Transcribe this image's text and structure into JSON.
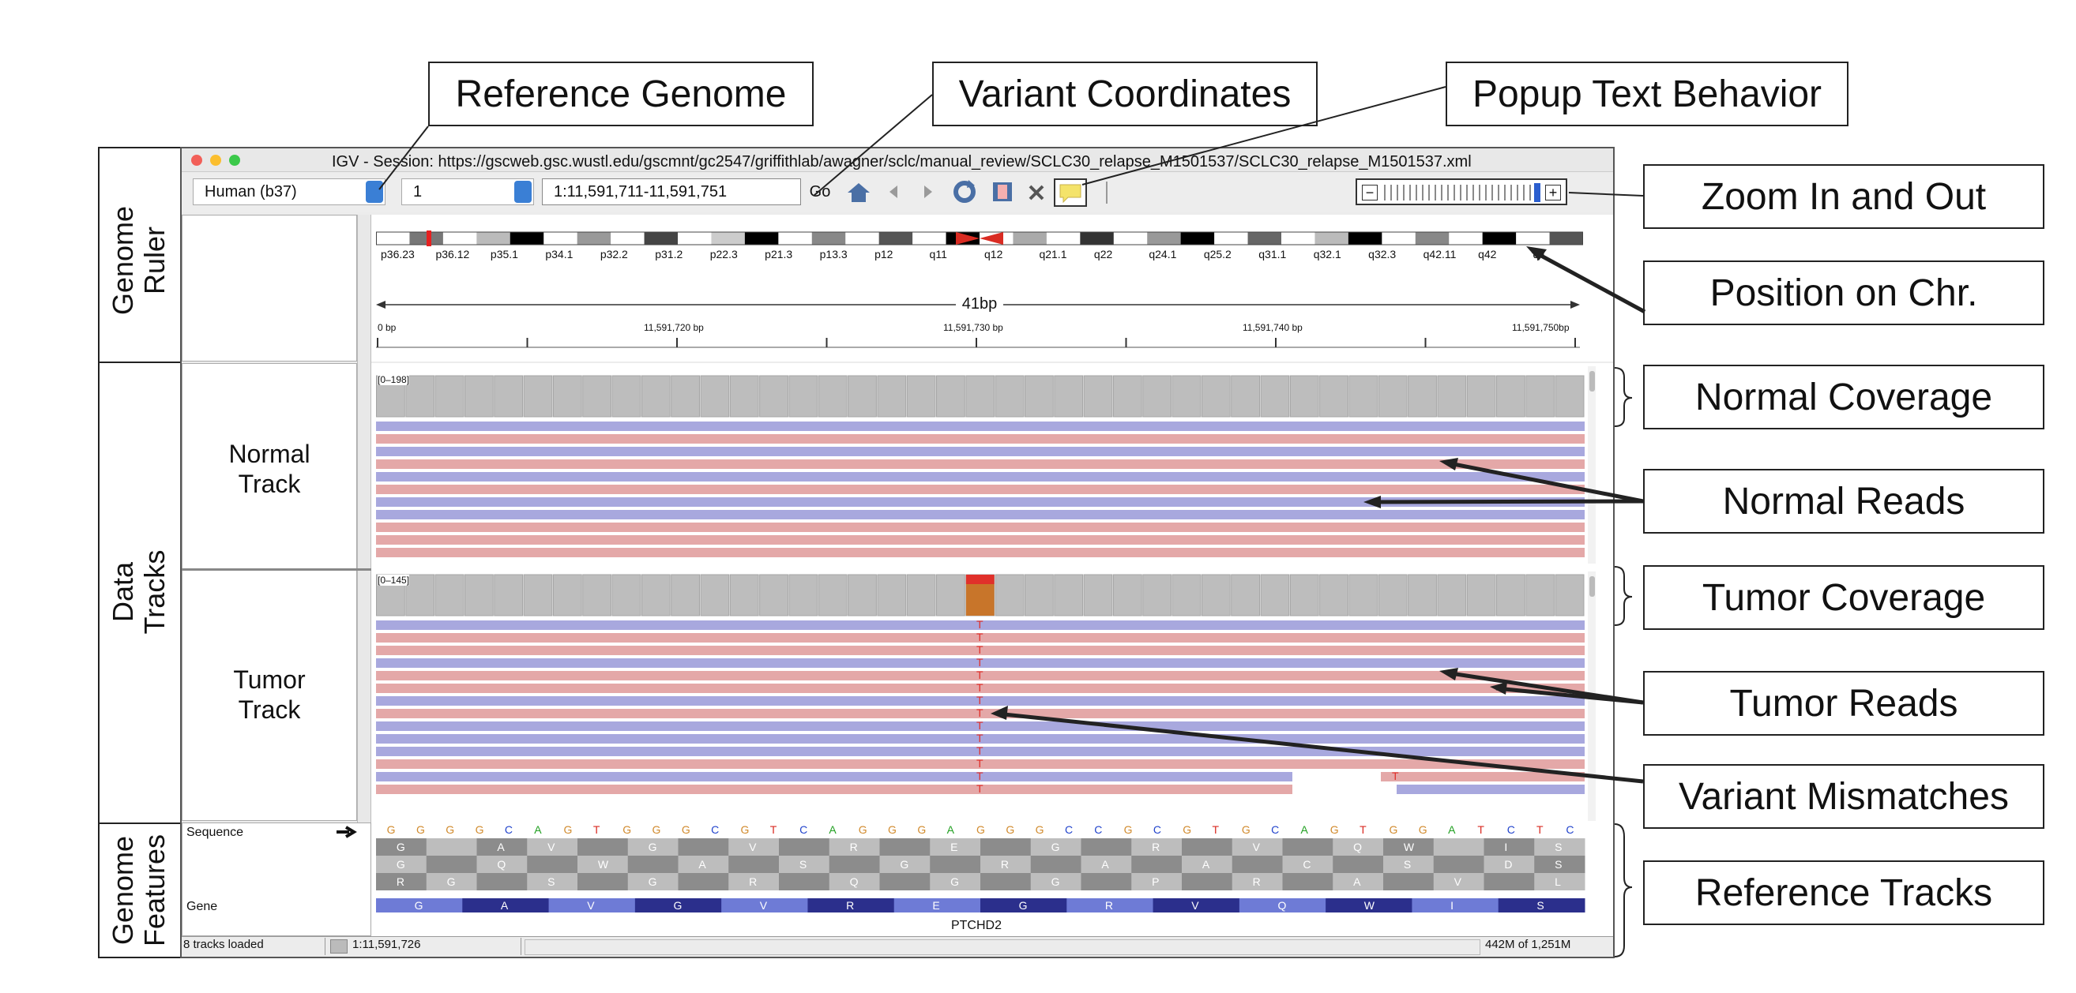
{
  "callouts": {
    "reference_genome": "Reference Genome",
    "variant_coordinates": "Variant Coordinates",
    "popup_text": "Popup Text Behavior",
    "zoom": "Zoom In and Out",
    "position_chr": "Position on Chr.",
    "normal_coverage": "Normal Coverage",
    "normal_reads": "Normal Reads",
    "tumor_coverage": "Tumor Coverage",
    "tumor_reads": "Tumor Reads",
    "variant_mismatches": "Variant Mismatches",
    "reference_tracks": "Reference Tracks"
  },
  "side_labels": {
    "genome_ruler": [
      "Genome",
      "Ruler"
    ],
    "data_tracks": [
      "Data",
      "Tracks"
    ],
    "genome_features": [
      "Genome",
      "Features"
    ]
  },
  "window": {
    "title": "IGV - Session: https://gscweb.gsc.wustl.edu/gscmnt/gc2547/griffithlab/awagner/sclc/manual_review/SCLC30_relapse_M1501537/SCLC30_relapse_M1501537.xml",
    "genome_select": "Human (b37)",
    "chrom_select": "1",
    "locus": "1:11,591,711-11,591,751",
    "go_label": "Go"
  },
  "ideogram_bands": [
    "p36.23",
    "p36.12",
    "p35.1",
    "p34.1",
    "p32.2",
    "p31.2",
    "p22.3",
    "p21.3",
    "p13.3",
    "p12",
    "q11",
    "q12",
    "q21.1",
    "q22",
    "q24.1",
    "q25.2",
    "q31.1",
    "q32.1",
    "q32.3",
    "q42.11",
    "q42",
    "q4"
  ],
  "ruler": {
    "span": "41bp",
    "tick_labels": [
      "0 bp",
      "11,591,720 bp",
      "11,591,730 bp",
      "11,591,740 bp",
      "11,591,750bp"
    ]
  },
  "tracks": {
    "normal": {
      "name_line1": "Normal",
      "name_line2": "Track",
      "range": "[0–198]"
    },
    "tumor": {
      "name_line1": "Tumor",
      "name_line2": "Track",
      "range": "[0–145]",
      "mismatch_base": "T",
      "extra_base": "T"
    }
  },
  "sequence": {
    "label": "Sequence",
    "bases": [
      "G",
      "G",
      "G",
      "G",
      "C",
      "A",
      "G",
      "T",
      "G",
      "G",
      "G",
      "C",
      "G",
      "T",
      "C",
      "A",
      "G",
      "G",
      "G",
      "A",
      "G",
      "G",
      "G",
      "C",
      "C",
      "G",
      "C",
      "G",
      "T",
      "G",
      "C",
      "A",
      "G",
      "T",
      "G",
      "G",
      "A",
      "T",
      "C",
      "T",
      "C"
    ],
    "aa_row1": [
      "G",
      "",
      "A",
      "V",
      "",
      "G",
      "",
      "V",
      "",
      "R",
      "",
      "E",
      "",
      "G",
      "",
      "R",
      "",
      "V",
      "",
      "Q",
      "W",
      "",
      "I",
      "S"
    ],
    "aa_row2": [
      "G",
      "",
      "Q",
      "",
      "W",
      "",
      "A",
      "",
      "S",
      "",
      "G",
      "",
      "R",
      "",
      "A",
      "",
      "A",
      "",
      "C",
      "",
      "S",
      "",
      "D",
      "S"
    ],
    "aa_row3": [
      "R",
      "G",
      "",
      "S",
      "",
      "G",
      "",
      "R",
      "",
      "Q",
      "",
      "G",
      "",
      "G",
      "",
      "P",
      "",
      "R",
      "",
      "A",
      "",
      "V",
      "",
      "L"
    ]
  },
  "gene": {
    "label": "Gene",
    "name": "PTCHD2",
    "aa": [
      "G",
      "A",
      "V",
      "G",
      "V",
      "R",
      "E",
      "G",
      "R",
      "V",
      "Q",
      "W",
      "I",
      "S"
    ]
  },
  "status": {
    "tracks_loaded": "8 tracks loaded",
    "position": "1:11,591,726",
    "memory": "442M of 1,251M"
  },
  "colors": {
    "forward_read": "#e4a8a8",
    "reverse_read": "#a8a8de",
    "coverage": "#bdbdbd",
    "gene_dark": "#2b2f8c",
    "gene_light": "#6e7bd6",
    "mismatch": "#e0302a"
  }
}
